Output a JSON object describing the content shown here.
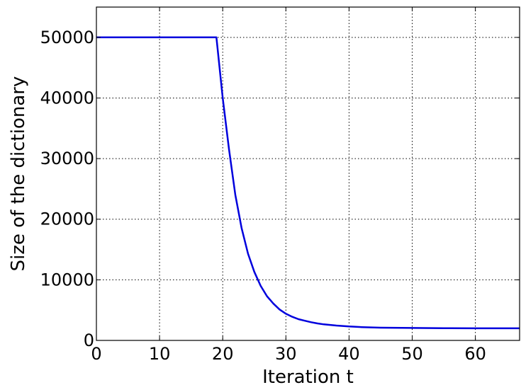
{
  "chart_data": {
    "type": "line",
    "title": "",
    "xlabel": "Iteration t",
    "ylabel": "Size of the dictionary",
    "xlim": [
      0,
      67
    ],
    "ylim": [
      0,
      55000
    ],
    "xticks": [
      0,
      10,
      20,
      30,
      40,
      50,
      60
    ],
    "yticks": [
      0,
      10000,
      20000,
      30000,
      40000,
      50000
    ],
    "grid": true,
    "legend": "none",
    "series": [
      {
        "color": "#0000dd",
        "x": [
          0,
          5,
          10,
          15,
          19,
          20,
          21,
          22,
          23,
          24,
          25,
          26,
          27,
          28,
          29,
          30,
          31,
          32,
          33,
          34,
          35,
          36,
          38,
          40,
          42,
          45,
          50,
          55,
          60,
          67
        ],
        "y": [
          50000,
          50000,
          50000,
          50000,
          50000,
          40000,
          31500,
          24000,
          18500,
          14300,
          11300,
          9000,
          7300,
          6100,
          5100,
          4400,
          3900,
          3500,
          3250,
          3000,
          2800,
          2650,
          2450,
          2300,
          2200,
          2100,
          2050,
          2020,
          2000,
          2000
        ]
      }
    ]
  }
}
